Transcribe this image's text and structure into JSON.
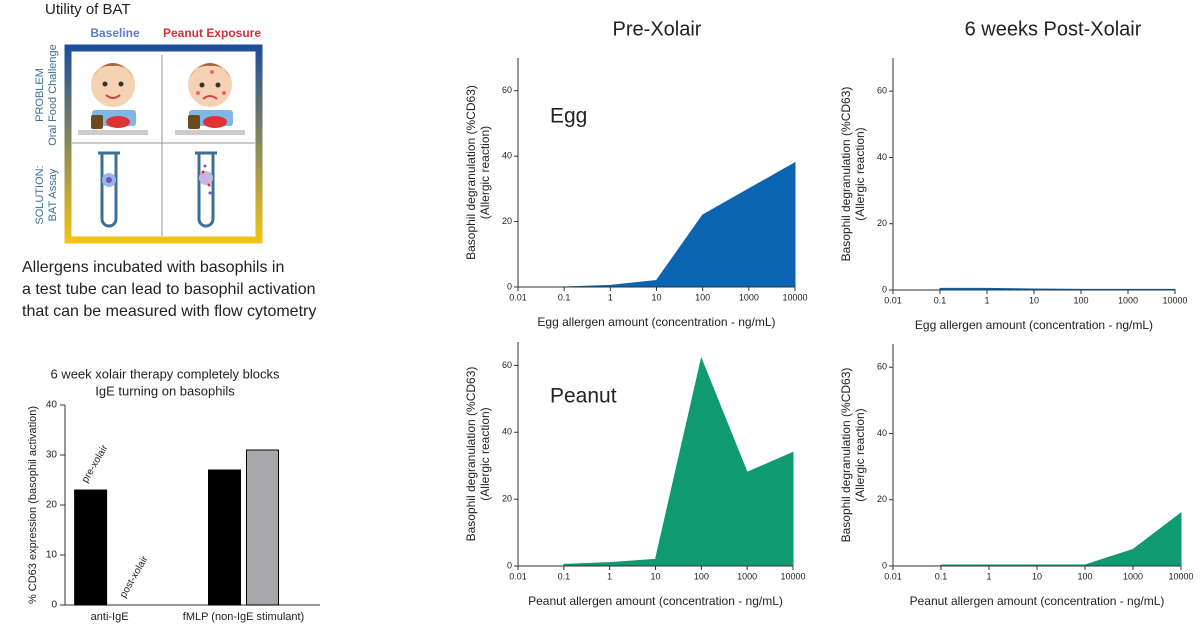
{
  "header": {
    "title": "Utility of BAT"
  },
  "infographic": {
    "columns": [
      "Baseline",
      "Peanut Exposure"
    ],
    "rows": [
      [
        "PROBLEM",
        "Oral Food Challenge"
      ],
      [
        "SOLUTION:",
        "BAT Assay"
      ]
    ]
  },
  "caption": [
    "Allergens incubated with basophils in",
    "a test tube can lead to basophil activation",
    "that can be measured with flow cytometry"
  ],
  "column_titles": [
    "Pre-Xolair",
    "6 weeks Post-Xolair"
  ],
  "chart_data": [
    {
      "type": "bar",
      "title": [
        "6 week xolair therapy completely blocks",
        "IgE turning on basophils"
      ],
      "y_label": "% CD63 expression (basophil activation)",
      "categories": [
        "anti-IgE",
        "fMLP (non-IgE stimulant)"
      ],
      "series": [
        {
          "name": "pre-xolair",
          "color": "#000000",
          "values": [
            23,
            27
          ]
        },
        {
          "name": "post-xolair",
          "color": "#a8a8ab",
          "values": [
            0,
            31
          ]
        }
      ],
      "ylim": [
        0,
        40
      ],
      "yticks": [
        0,
        10,
        20,
        30,
        40
      ]
    },
    {
      "type": "area",
      "label": "Egg",
      "x_label": "Egg allergen amount (concentration - ng/mL)",
      "y_label": [
        "Basophil degranulation (%CD63)",
        "(Allergic reaction)"
      ],
      "x": [
        0.1,
        1,
        10,
        100,
        1000,
        10000
      ],
      "xscale": "log",
      "series": [
        {
          "color": "#0a64b0",
          "values": [
            0,
            0.5,
            2,
            22,
            30,
            38
          ]
        }
      ],
      "xlim": [
        0.01,
        10000
      ],
      "xticks": [
        0.01,
        0.1,
        1,
        10,
        100,
        1000,
        10000
      ],
      "ylim": [
        0,
        70
      ],
      "yticks": [
        0,
        20,
        40,
        60
      ]
    },
    {
      "type": "area",
      "x_label": "Egg allergen amount (concentration - ng/mL)",
      "y_label": [
        "Basophil degranulation (%CD63)",
        "(Allergic reaction)"
      ],
      "x": [
        0.1,
        1,
        10,
        100,
        1000,
        10000
      ],
      "xscale": "log",
      "series": [
        {
          "color": "#0a64b0",
          "values": [
            0.5,
            0.5,
            0.3,
            0.2,
            0.2,
            0.2
          ]
        }
      ],
      "xlim": [
        0.01,
        10000
      ],
      "xticks": [
        0.01,
        0.1,
        1,
        10,
        100,
        1000,
        10000
      ],
      "ylim": [
        0,
        70
      ],
      "yticks": [
        0,
        20,
        40,
        60
      ]
    },
    {
      "type": "area",
      "label": "Peanut",
      "x_label": "Peanut allergen amount (concentration - ng/mL)",
      "y_label": [
        "Basophil degranulation (%CD63)",
        "(Allergic reaction)"
      ],
      "x": [
        0.1,
        1,
        10,
        100,
        1000,
        10000
      ],
      "xscale": "log",
      "series": [
        {
          "color": "#0f9a6f",
          "values": [
            0.5,
            1,
            2,
            62,
            28,
            34
          ]
        }
      ],
      "xlim": [
        0.01,
        10000
      ],
      "xticks": [
        0.01,
        0.1,
        1,
        10,
        100,
        1000,
        10000
      ],
      "ylim": [
        0,
        67
      ],
      "yticks": [
        0,
        20,
        40,
        60
      ]
    },
    {
      "type": "area",
      "x_label": "Peanut allergen amount (concentration - ng/mL)",
      "y_label": [
        "Basophil degranulation (%CD63)",
        "(Allergic reaction)"
      ],
      "x": [
        0.1,
        1,
        10,
        100,
        1000,
        10000
      ],
      "xscale": "log",
      "series": [
        {
          "color": "#0f9a6f",
          "values": [
            0.3,
            0.3,
            0.3,
            0.3,
            5,
            16
          ]
        }
      ],
      "xlim": [
        0.01,
        10000
      ],
      "xticks": [
        0.01,
        0.1,
        1,
        10,
        100,
        1000,
        10000
      ],
      "ylim": [
        0,
        67
      ],
      "yticks": [
        0,
        20,
        40,
        60
      ]
    }
  ]
}
